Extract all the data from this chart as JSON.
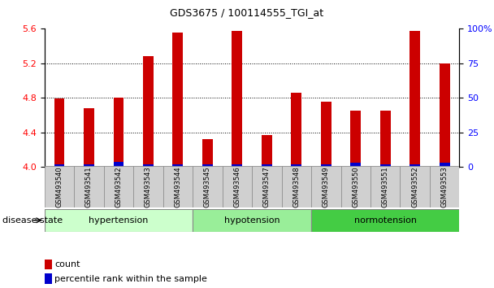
{
  "title": "GDS3675 / 100114555_TGI_at",
  "samples": [
    "GSM493540",
    "GSM493541",
    "GSM493542",
    "GSM493543",
    "GSM493544",
    "GSM493545",
    "GSM493546",
    "GSM493547",
    "GSM493548",
    "GSM493549",
    "GSM493550",
    "GSM493551",
    "GSM493552",
    "GSM493553"
  ],
  "counts": [
    4.79,
    4.68,
    4.8,
    5.28,
    5.56,
    4.32,
    5.58,
    4.37,
    4.86,
    4.76,
    4.65,
    4.65,
    5.58,
    5.2
  ],
  "percentiles": [
    2,
    2,
    4,
    2,
    2,
    2,
    2,
    2,
    2,
    2,
    3,
    2,
    2,
    3
  ],
  "groups": [
    {
      "label": "hypertension",
      "start": 0,
      "end": 5,
      "color": "#ccffcc"
    },
    {
      "label": "hypotension",
      "start": 5,
      "end": 9,
      "color": "#99ee99"
    },
    {
      "label": "normotension",
      "start": 9,
      "end": 14,
      "color": "#44cc44"
    }
  ],
  "ylim_left": [
    4.0,
    5.6
  ],
  "ylim_right": [
    0,
    100
  ],
  "yticks_left": [
    4.0,
    4.4,
    4.8,
    5.2,
    5.6
  ],
  "yticks_right": [
    0,
    25,
    50,
    75,
    100
  ],
  "ytick_labels_right": [
    "0",
    "25",
    "50",
    "75",
    "100%"
  ],
  "bar_color": "#cc0000",
  "percentile_color": "#0000cc",
  "bar_width": 0.35,
  "disease_state_label": "disease state"
}
